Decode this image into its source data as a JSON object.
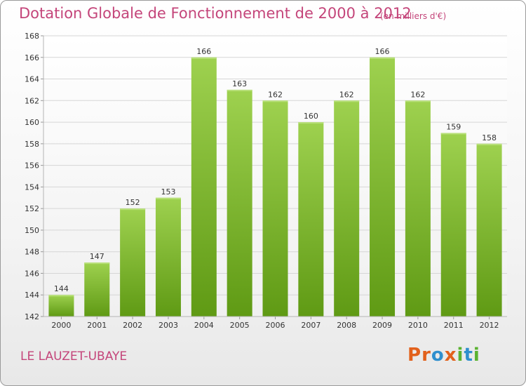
{
  "title": "Dotation Globale de Fonctionnement de 2000 à 2012",
  "subtitle": "(en milliers d'€)",
  "commune": "LE LAUZET-UBAYE",
  "logo": {
    "text": "Proxiti",
    "letters": [
      "P",
      "r",
      "o",
      "x",
      "i",
      "t",
      "i"
    ],
    "colors": [
      "#e2611c",
      "#e2611c",
      "#2f8fce",
      "#e2611c",
      "#5ab230",
      "#2f8fce",
      "#5ab230"
    ]
  },
  "colors": {
    "accent": "#c4457a",
    "bar_light": "#9ed14f",
    "bar_dark": "#5f9a14",
    "grid": "#d6d6d6"
  },
  "chart_data": {
    "type": "bar",
    "categories": [
      "2000",
      "2001",
      "2002",
      "2003",
      "2004",
      "2005",
      "2006",
      "2007",
      "2008",
      "2009",
      "2010",
      "2011",
      "2012"
    ],
    "values": [
      144,
      147,
      152,
      153,
      166,
      163,
      162,
      160,
      162,
      166,
      162,
      159,
      158
    ],
    "ylim": [
      142,
      168
    ],
    "yticks": [
      142,
      144,
      146,
      148,
      150,
      152,
      154,
      156,
      158,
      160,
      162,
      164,
      166,
      168
    ],
    "xlabel": "",
    "ylabel": "",
    "grid": true
  }
}
